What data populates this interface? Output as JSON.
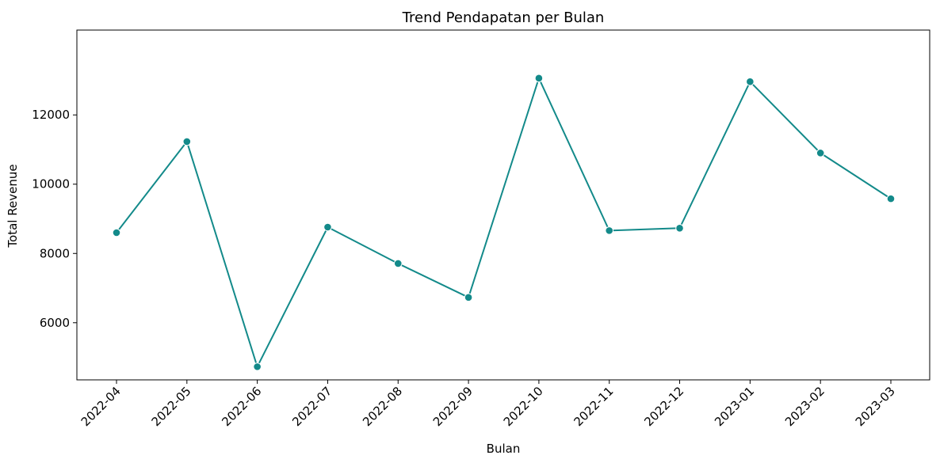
{
  "chart_data": {
    "type": "line",
    "title": "Trend Pendapatan per Bulan",
    "xlabel": "Bulan",
    "ylabel": "Total Revenue",
    "categories": [
      "2022-04",
      "2022-05",
      "2022-06",
      "2022-07",
      "2022-08",
      "2022-09",
      "2022-10",
      "2022-11",
      "2022-12",
      "2023-01",
      "2023-02",
      "2023-03"
    ],
    "series": [
      {
        "values": [
          8600,
          11230,
          4730,
          8760,
          7710,
          6730,
          13060,
          8660,
          8730,
          12960,
          10900,
          9580
        ]
      }
    ],
    "ylim": [
      4350,
      14450
    ],
    "yticks": [
      6000,
      8000,
      10000,
      12000
    ],
    "ytick_labels": [
      "6000",
      "8000",
      "10000",
      "12000"
    ],
    "grid": false,
    "legend": "none",
    "line_color": "#138a8a",
    "marker": "circle"
  }
}
